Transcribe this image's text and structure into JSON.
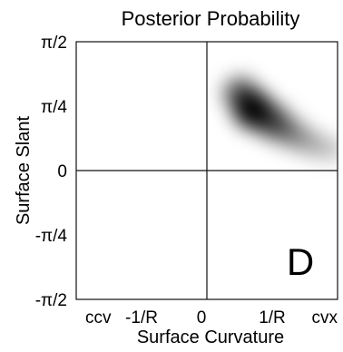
{
  "chart_data": {
    "type": "heatmap",
    "title": "Posterior Probability",
    "xlabel": "Surface Curvature",
    "ylabel": "Surface Slant",
    "panel_label": "D",
    "xlim": [
      -2,
      2
    ],
    "ylim": [
      -1.5708,
      1.5708
    ],
    "x_ticks": [
      {
        "value": -2,
        "label": "ccv"
      },
      {
        "value": -1,
        "label": "-1/R"
      },
      {
        "value": 0,
        "label": "0"
      },
      {
        "value": 1,
        "label": "1/R"
      },
      {
        "value": 2,
        "label": "cvx"
      }
    ],
    "y_ticks": [
      {
        "value": 1.5708,
        "label": "π/2"
      },
      {
        "value": 0.7854,
        "label": "π/4"
      },
      {
        "value": 0,
        "label": "0"
      },
      {
        "value": -0.7854,
        "label": "-π/4"
      },
      {
        "value": -1.5708,
        "label": "-π/2"
      }
    ],
    "reference_lines": {
      "x": 0,
      "y": 0
    },
    "density_peak": {
      "x": 0.7,
      "y": 0.75,
      "value": 1.0
    },
    "density_ridge": [
      {
        "x": 0.5,
        "y": 0.95,
        "weight": 0.6
      },
      {
        "x": 0.7,
        "y": 0.75,
        "weight": 1.0
      },
      {
        "x": 1.0,
        "y": 0.6,
        "weight": 0.75
      },
      {
        "x": 1.3,
        "y": 0.45,
        "weight": 0.45
      },
      {
        "x": 1.6,
        "y": 0.33,
        "weight": 0.25
      },
      {
        "x": 1.9,
        "y": 0.25,
        "weight": 0.12
      }
    ],
    "colormap": "white-to-black",
    "grid": false
  }
}
